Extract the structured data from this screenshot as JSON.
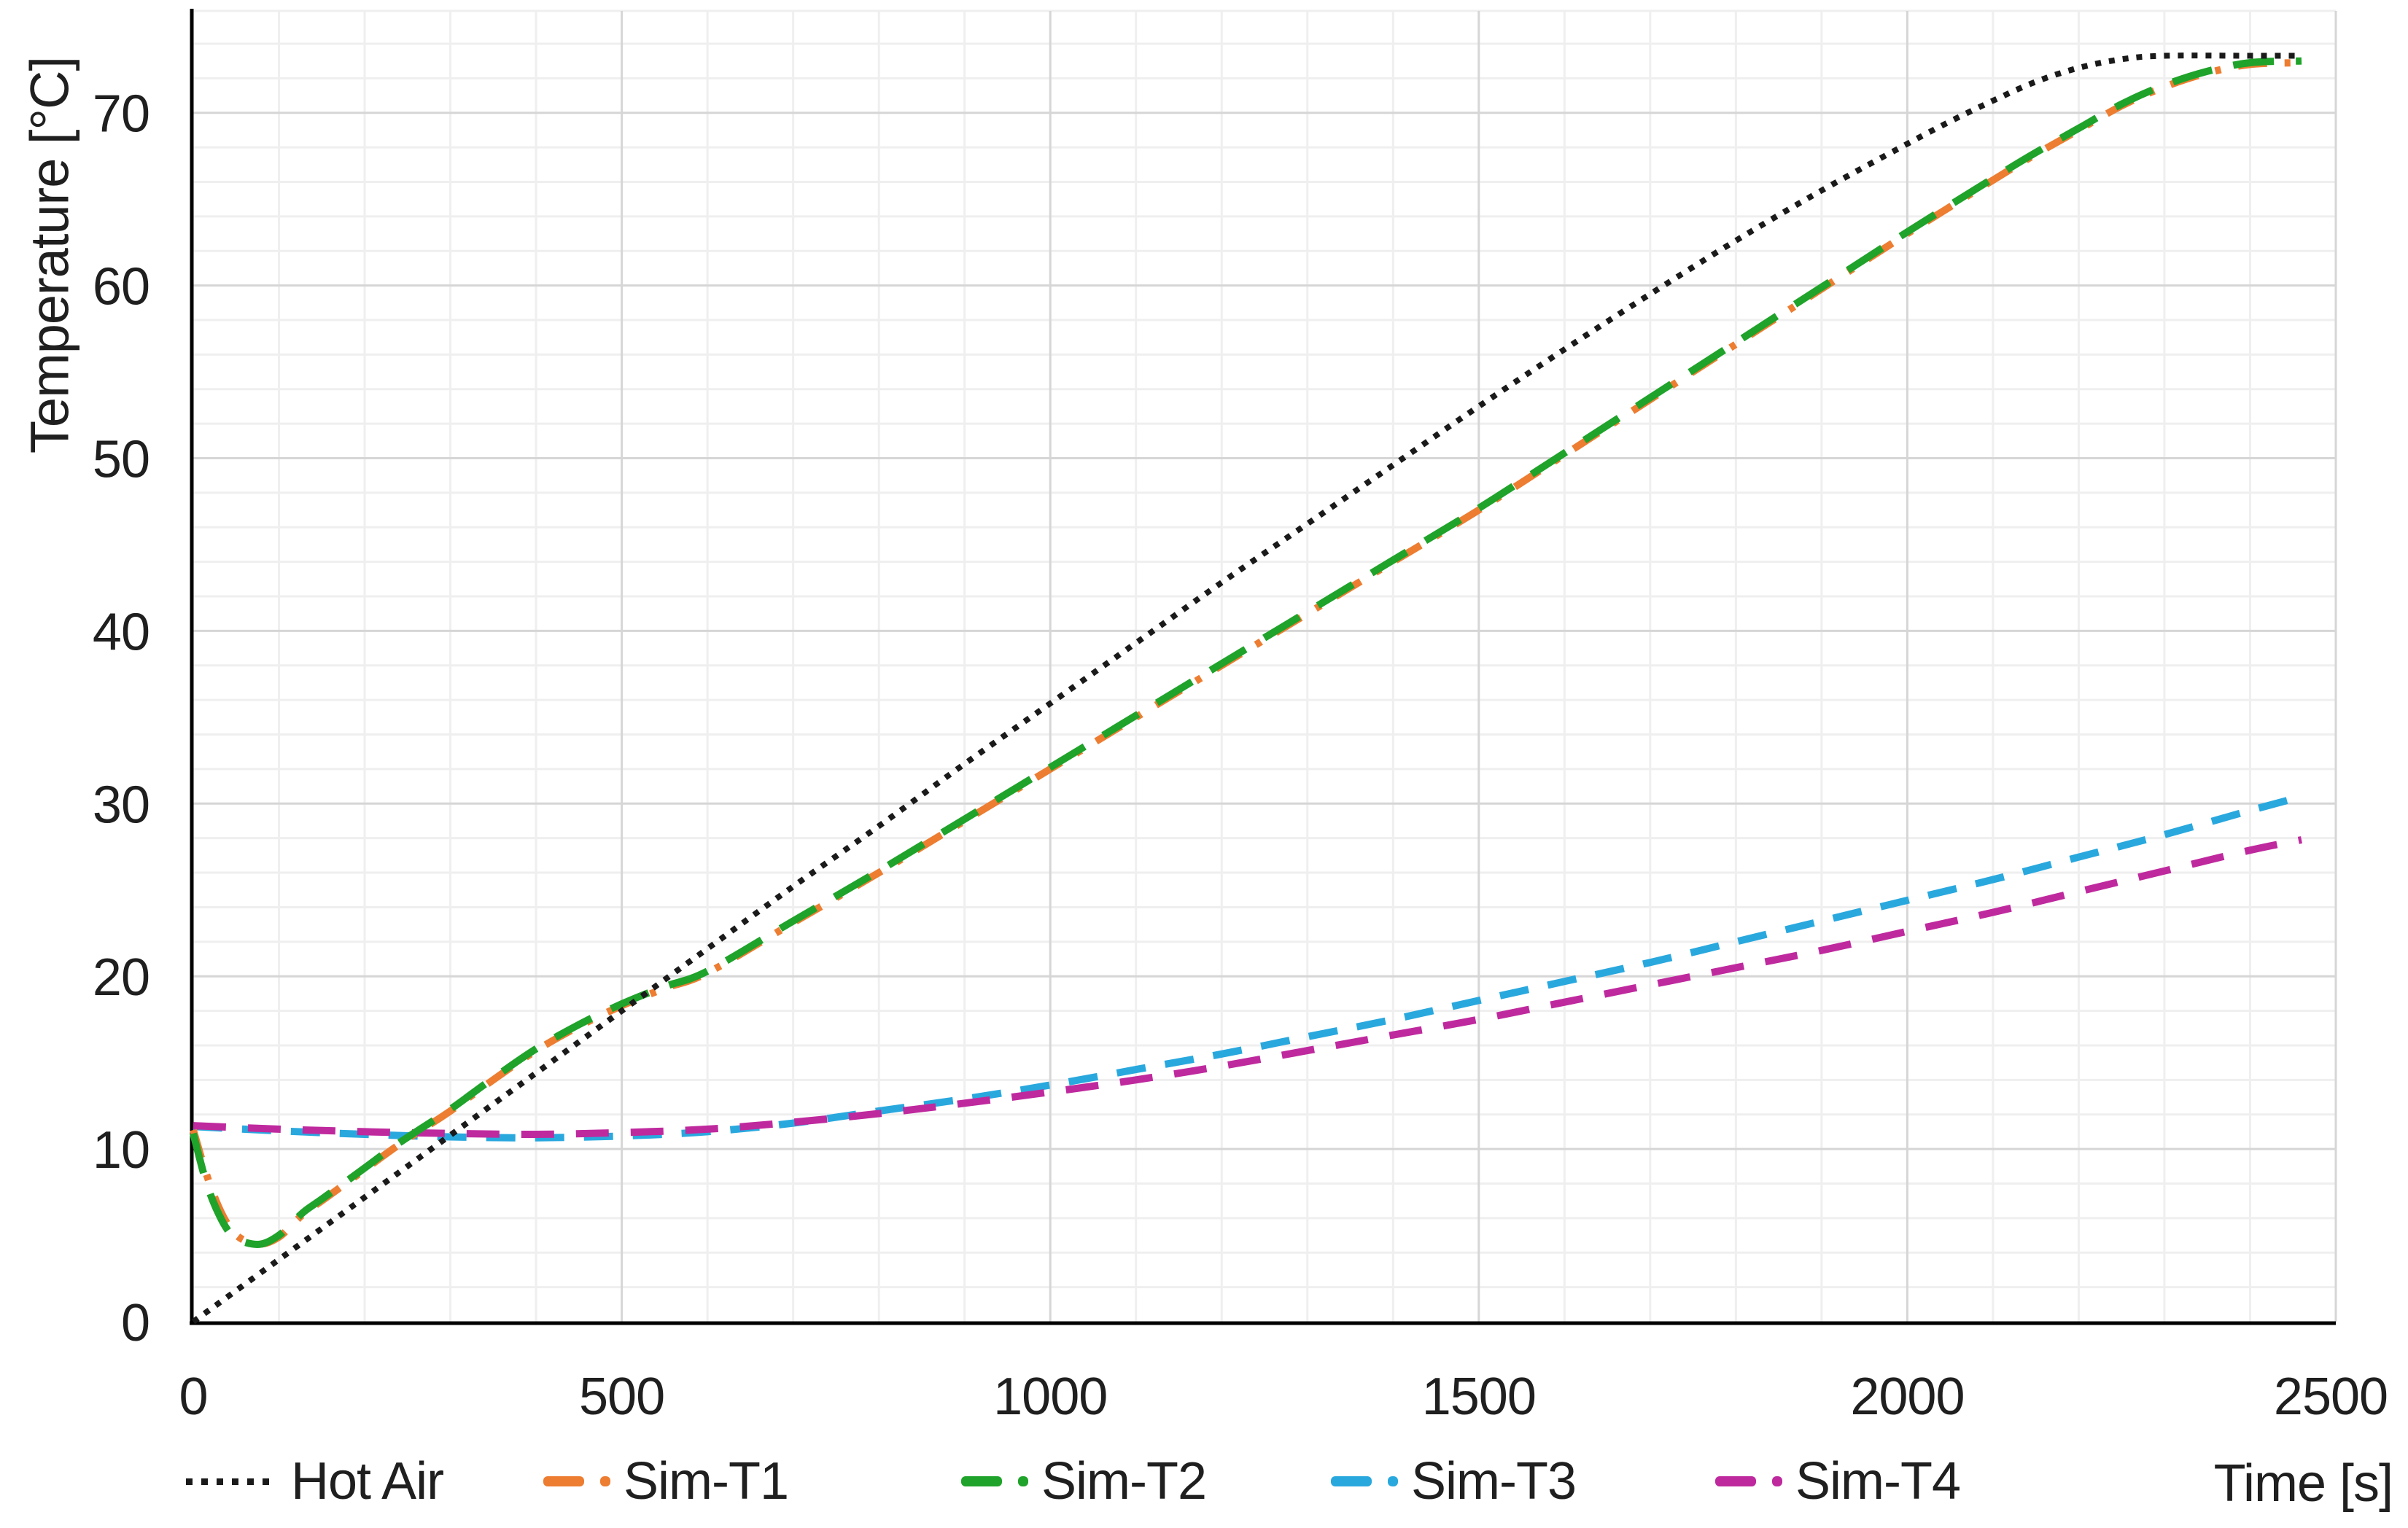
{
  "chart_data": {
    "type": "line",
    "title": "",
    "xlabel": "Time [s]",
    "ylabel": "Temperature [°C]",
    "xlim": [
      0,
      2500
    ],
    "ylim": [
      0,
      75.9
    ],
    "x_ticks": [
      0,
      500,
      1000,
      1500,
      2000,
      2500
    ],
    "y_ticks": [
      0,
      10,
      20,
      30,
      40,
      50,
      60,
      70
    ],
    "x_minor_unit": 100,
    "y_minor_unit": 2,
    "grid": true,
    "legend_position": "bottom",
    "series": [
      {
        "name": "Hot Air",
        "color": "#1a1a1a",
        "linestyle": "dotted",
        "dash": [
          8,
          11
        ],
        "width": 8,
        "points": [
          [
            0,
            0
          ],
          [
            100,
            3.6
          ],
          [
            200,
            7.2
          ],
          [
            300,
            10.8
          ],
          [
            400,
            14.4
          ],
          [
            500,
            18.0
          ],
          [
            600,
            21.6
          ],
          [
            700,
            25.2
          ],
          [
            800,
            28.7
          ],
          [
            900,
            32.3
          ],
          [
            1000,
            35.8
          ],
          [
            1100,
            39.3
          ],
          [
            1200,
            42.8
          ],
          [
            1300,
            46.2
          ],
          [
            1400,
            49.6
          ],
          [
            1500,
            53.0
          ],
          [
            1600,
            56.3
          ],
          [
            1700,
            59.5
          ],
          [
            1800,
            62.6
          ],
          [
            1900,
            65.5
          ],
          [
            2000,
            68.2
          ],
          [
            2050,
            69.5
          ],
          [
            2100,
            70.7
          ],
          [
            2150,
            71.8
          ],
          [
            2200,
            72.6
          ],
          [
            2250,
            73.1
          ],
          [
            2300,
            73.3
          ],
          [
            2400,
            73.3
          ],
          [
            2460,
            73.3
          ]
        ]
      },
      {
        "name": "Sim-T1",
        "color": "#ED7D31",
        "linestyle": "dash-dot",
        "dash": [
          40,
          24,
          8,
          24
        ],
        "width": 10,
        "points": [
          [
            0,
            11.1
          ],
          [
            15,
            8.6
          ],
          [
            30,
            6.6
          ],
          [
            45,
            5.3
          ],
          [
            60,
            4.7
          ],
          [
            80,
            4.5
          ],
          [
            100,
            4.9
          ],
          [
            115,
            5.6
          ],
          [
            130,
            6.3
          ],
          [
            150,
            7.0
          ],
          [
            175,
            7.9
          ],
          [
            200,
            8.8
          ],
          [
            230,
            9.9
          ],
          [
            260,
            10.9
          ],
          [
            300,
            12.2
          ],
          [
            350,
            14.0
          ],
          [
            400,
            15.7
          ],
          [
            450,
            17.1
          ],
          [
            500,
            18.3
          ],
          [
            550,
            19.3
          ],
          [
            600,
            20.2
          ],
          [
            700,
            23.1
          ],
          [
            800,
            26.0
          ],
          [
            900,
            29.0
          ],
          [
            1000,
            32.0
          ],
          [
            1100,
            35.0
          ],
          [
            1200,
            38.0
          ],
          [
            1300,
            41.0
          ],
          [
            1400,
            44.0
          ],
          [
            1500,
            47.0
          ],
          [
            1600,
            50.2
          ],
          [
            1700,
            53.4
          ],
          [
            1800,
            56.6
          ],
          [
            1900,
            59.8
          ],
          [
            2000,
            63.0
          ],
          [
            2100,
            66.1
          ],
          [
            2150,
            67.6
          ],
          [
            2200,
            69.0
          ],
          [
            2250,
            70.4
          ],
          [
            2300,
            71.5
          ],
          [
            2350,
            72.3
          ],
          [
            2400,
            72.8
          ],
          [
            2460,
            72.9
          ]
        ]
      },
      {
        "name": "Sim-T2",
        "color": "#1FA32A",
        "linestyle": "dashed",
        "dash": [
          56,
          30
        ],
        "width": 10,
        "points": [
          [
            0,
            10.9
          ],
          [
            15,
            8.1
          ],
          [
            30,
            6.2
          ],
          [
            45,
            5.0
          ],
          [
            60,
            4.6
          ],
          [
            80,
            4.5
          ],
          [
            100,
            5.0
          ],
          [
            115,
            5.7
          ],
          [
            130,
            6.4
          ],
          [
            150,
            7.1
          ],
          [
            175,
            8.0
          ],
          [
            200,
            8.9
          ],
          [
            230,
            10.0
          ],
          [
            260,
            11.0
          ],
          [
            300,
            12.3
          ],
          [
            350,
            14.1
          ],
          [
            400,
            15.8
          ],
          [
            450,
            17.2
          ],
          [
            500,
            18.4
          ],
          [
            550,
            19.4
          ],
          [
            600,
            20.3
          ],
          [
            700,
            23.2
          ],
          [
            800,
            26.1
          ],
          [
            900,
            29.1
          ],
          [
            1000,
            32.1
          ],
          [
            1100,
            35.1
          ],
          [
            1200,
            38.1
          ],
          [
            1300,
            41.1
          ],
          [
            1400,
            44.1
          ],
          [
            1500,
            47.1
          ],
          [
            1600,
            50.3
          ],
          [
            1700,
            53.5
          ],
          [
            1800,
            56.7
          ],
          [
            1900,
            59.9
          ],
          [
            2000,
            63.1
          ],
          [
            2100,
            66.2
          ],
          [
            2150,
            67.7
          ],
          [
            2200,
            69.1
          ],
          [
            2250,
            70.5
          ],
          [
            2300,
            71.6
          ],
          [
            2350,
            72.4
          ],
          [
            2400,
            72.9
          ],
          [
            2460,
            73.0
          ]
        ]
      },
      {
        "name": "Sim-T3",
        "color": "#29A8DE",
        "linestyle": "dashed",
        "dash": [
          40,
          27
        ],
        "width": 10,
        "points": [
          [
            0,
            11.3
          ],
          [
            100,
            11.05
          ],
          [
            200,
            10.85
          ],
          [
            300,
            10.7
          ],
          [
            400,
            10.65
          ],
          [
            500,
            10.75
          ],
          [
            600,
            11.0
          ],
          [
            700,
            11.5
          ],
          [
            800,
            12.2
          ],
          [
            900,
            12.9
          ],
          [
            1000,
            13.7
          ],
          [
            1100,
            14.6
          ],
          [
            1200,
            15.5
          ],
          [
            1300,
            16.5
          ],
          [
            1400,
            17.5
          ],
          [
            1500,
            18.6
          ],
          [
            1600,
            19.7
          ],
          [
            1700,
            20.8
          ],
          [
            1800,
            22.0
          ],
          [
            1900,
            23.2
          ],
          [
            2000,
            24.4
          ],
          [
            2100,
            25.6
          ],
          [
            2200,
            26.9
          ],
          [
            2300,
            28.2
          ],
          [
            2400,
            29.6
          ],
          [
            2460,
            30.4
          ]
        ]
      },
      {
        "name": "Sim-T4",
        "color": "#BF299E",
        "linestyle": "dashed",
        "dash": [
          45,
          30
        ],
        "width": 10,
        "points": [
          [
            0,
            11.35
          ],
          [
            100,
            11.15
          ],
          [
            200,
            11.0
          ],
          [
            300,
            10.9
          ],
          [
            400,
            10.85
          ],
          [
            500,
            10.95
          ],
          [
            600,
            11.15
          ],
          [
            700,
            11.55
          ],
          [
            800,
            12.05
          ],
          [
            900,
            12.65
          ],
          [
            1000,
            13.3
          ],
          [
            1100,
            14.0
          ],
          [
            1200,
            14.8
          ],
          [
            1300,
            15.7
          ],
          [
            1400,
            16.6
          ],
          [
            1500,
            17.5
          ],
          [
            1600,
            18.5
          ],
          [
            1700,
            19.5
          ],
          [
            1800,
            20.5
          ],
          [
            1900,
            21.5
          ],
          [
            2000,
            22.6
          ],
          [
            2100,
            23.7
          ],
          [
            2200,
            24.9
          ],
          [
            2300,
            26.1
          ],
          [
            2400,
            27.3
          ],
          [
            2460,
            27.9
          ]
        ]
      }
    ],
    "colors": {
      "background": "#ffffff",
      "axis": "#000000",
      "grid_minor": "#efefef",
      "grid_major": "#d6d6d6",
      "text": "#1f1f1f"
    }
  }
}
